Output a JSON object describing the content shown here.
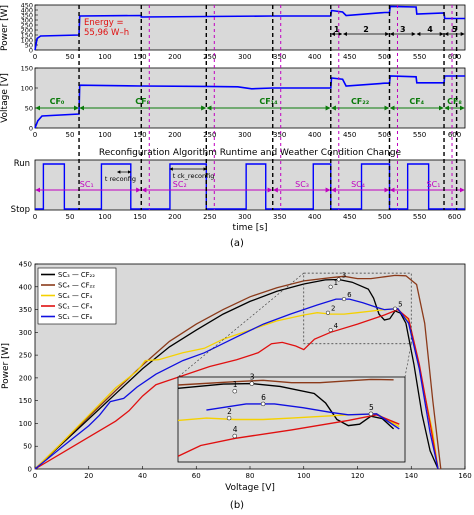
{
  "top_figure": {
    "panel_label": "(a)",
    "xlabel": "time [s]",
    "xticks": [
      "0",
      "50",
      "100",
      "150",
      "200",
      "250",
      "300",
      "350",
      "400",
      "450",
      "500",
      "550",
      "600"
    ],
    "event_times": [
      63,
      152,
      245,
      340,
      423,
      507,
      585,
      603
    ],
    "reconfig_times": [
      152,
      245,
      340,
      423,
      507,
      585
    ],
    "power": {
      "ylabel": "Power [W]",
      "yticks": [
        "0",
        "50",
        "100",
        "150",
        "200",
        "250",
        "300",
        "350",
        "400",
        "450"
      ],
      "annotation": "Energy =\n55,96 W–h",
      "segment_labels": [
        "1",
        "2",
        "3",
        "4",
        "5"
      ],
      "series": [
        [
          0,
          0
        ],
        [
          3,
          115
        ],
        [
          8,
          140
        ],
        [
          63,
          150
        ],
        [
          64,
          340
        ],
        [
          152,
          345
        ],
        [
          152,
          330
        ],
        [
          245,
          335
        ],
        [
          340,
          340
        ],
        [
          423,
          340
        ],
        [
          424,
          395
        ],
        [
          440,
          380
        ],
        [
          445,
          345
        ],
        [
          500,
          375
        ],
        [
          507,
          375
        ],
        [
          508,
          435
        ],
        [
          545,
          430
        ],
        [
          546,
          360
        ],
        [
          585,
          370
        ],
        [
          586,
          315
        ],
        [
          615,
          315
        ]
      ]
    },
    "voltage": {
      "ylabel": "Voltage [V]",
      "yticks": [
        "0",
        "50",
        "100",
        "150"
      ],
      "cf_labels": [
        "CF₀",
        "CF₈",
        "CF₁₄",
        "CF₂₂",
        "CF₄",
        "CF₈"
      ],
      "series": [
        [
          0,
          0
        ],
        [
          4,
          18
        ],
        [
          10,
          30
        ],
        [
          63,
          35
        ],
        [
          64,
          107
        ],
        [
          152,
          105
        ],
        [
          245,
          104
        ],
        [
          290,
          103
        ],
        [
          310,
          98
        ],
        [
          340,
          100
        ],
        [
          423,
          100
        ],
        [
          424,
          125
        ],
        [
          440,
          122
        ],
        [
          445,
          105
        ],
        [
          500,
          112
        ],
        [
          507,
          112
        ],
        [
          508,
          130
        ],
        [
          545,
          128
        ],
        [
          546,
          113
        ],
        [
          585,
          113
        ],
        [
          586,
          130
        ],
        [
          615,
          130
        ]
      ]
    },
    "runtime": {
      "title": "Reconfiguration Algorithm Runtime and Weather Condition Change",
      "ylabels": [
        "Run",
        "Stop"
      ],
      "sc_labels": [
        "SC₁",
        "SC₂",
        "SC₃",
        "SC₄",
        "SC₁"
      ],
      "annot_short": "t reconfig",
      "annot_long": "t ck_reconfig",
      "pulses": [
        [
          12,
          42
        ],
        [
          95,
          137
        ],
        [
          193,
          245
        ],
        [
          302,
          330
        ],
        [
          398,
          423
        ],
        [
          467,
          507
        ],
        [
          533,
          563
        ]
      ]
    }
  },
  "bottom_figure": {
    "panel_label": "(b)",
    "chart_data": {
      "type": "line",
      "xlabel": "Voltage [V]",
      "ylabel": "Power [W]",
      "xlim": [
        0,
        160
      ],
      "ylim": [
        0,
        450
      ],
      "xticks": [
        "0",
        "20",
        "40",
        "60",
        "80",
        "100",
        "120",
        "140",
        "160"
      ],
      "yticks": [
        "0",
        "50",
        "100",
        "150",
        "200",
        "250",
        "300",
        "350",
        "400",
        "450"
      ],
      "legend_labels": [
        "SC₃ — CF₂₂",
        "SC₄ — CF₂₂",
        "SC₄ — CF₄",
        "SC₁ — CF₄",
        "SC₁ — CF₈"
      ],
      "point_labels": [
        "3",
        "1",
        "6",
        "2",
        "5",
        "4"
      ],
      "series": [
        {
          "color": "#000000",
          "points": [
            [
              0,
              0
            ],
            [
              10,
              55
            ],
            [
              20,
              110
            ],
            [
              30,
              165
            ],
            [
              40,
              220
            ],
            [
              50,
              268
            ],
            [
              60,
              305
            ],
            [
              70,
              340
            ],
            [
              80,
              368
            ],
            [
              90,
              390
            ],
            [
              100,
              406
            ],
            [
              108,
              415
            ],
            [
              113,
              416
            ],
            [
              118,
              410
            ],
            [
              124,
              395
            ],
            [
              126,
              375
            ],
            [
              128,
              340
            ],
            [
              130,
              327
            ],
            [
              132,
              330
            ],
            [
              134,
              347
            ],
            [
              136,
              342
            ],
            [
              138,
              320
            ],
            [
              141,
              230
            ],
            [
              144,
              120
            ],
            [
              147,
              40
            ],
            [
              150,
              0
            ]
          ]
        },
        {
          "color": "#8b3a1a",
          "points": [
            [
              0,
              0
            ],
            [
              10,
              57
            ],
            [
              20,
              115
            ],
            [
              30,
              172
            ],
            [
              40,
              228
            ],
            [
              50,
              280
            ],
            [
              60,
              318
            ],
            [
              70,
              350
            ],
            [
              80,
              378
            ],
            [
              90,
              398
            ],
            [
              100,
              413
            ],
            [
              110,
              420
            ],
            [
              115,
              423
            ],
            [
              120,
              418
            ],
            [
              125,
              418
            ],
            [
              130,
              422
            ],
            [
              134,
              425
            ],
            [
              138,
              424
            ],
            [
              142,
              405
            ],
            [
              145,
              320
            ],
            [
              148,
              150
            ],
            [
              151,
              0
            ]
          ]
        },
        {
          "color": "#f5d100",
          "points": [
            [
              0,
              0
            ],
            [
              10,
              58
            ],
            [
              20,
              118
            ],
            [
              30,
              178
            ],
            [
              38,
              215
            ],
            [
              41,
              238
            ],
            [
              46,
              240
            ],
            [
              55,
              255
            ],
            [
              63,
              265
            ],
            [
              70,
              285
            ],
            [
              80,
              305
            ],
            [
              90,
              325
            ],
            [
              100,
              338
            ],
            [
              105,
              343
            ],
            [
              110,
              340
            ],
            [
              115,
              340
            ],
            [
              120,
              343
            ],
            [
              130,
              350
            ],
            [
              135,
              352
            ],
            [
              139,
              325
            ],
            [
              143,
              220
            ],
            [
              148,
              80
            ],
            [
              150,
              0
            ]
          ]
        },
        {
          "color": "#e01010",
          "points": [
            [
              0,
              0
            ],
            [
              10,
              35
            ],
            [
              20,
              70
            ],
            [
              30,
              105
            ],
            [
              35,
              128
            ],
            [
              40,
              160
            ],
            [
              45,
              185
            ],
            [
              55,
              205
            ],
            [
              65,
              225
            ],
            [
              75,
              240
            ],
            [
              83,
              255
            ],
            [
              88,
              275
            ],
            [
              92,
              278
            ],
            [
              97,
              270
            ],
            [
              100,
              262
            ],
            [
              104,
              285
            ],
            [
              110,
              300
            ],
            [
              120,
              318
            ],
            [
              130,
              338
            ],
            [
              135,
              350
            ],
            [
              139,
              330
            ],
            [
              143,
              230
            ],
            [
              147,
              100
            ],
            [
              150,
              0
            ]
          ]
        },
        {
          "color": "#1010e0",
          "points": [
            [
              0,
              0
            ],
            [
              10,
              48
            ],
            [
              20,
              95
            ],
            [
              24,
              118
            ],
            [
              28,
              148
            ],
            [
              33,
              155
            ],
            [
              38,
              180
            ],
            [
              45,
              208
            ],
            [
              55,
              238
            ],
            [
              63,
              255
            ],
            [
              75,
              290
            ],
            [
              85,
              318
            ],
            [
              95,
              340
            ],
            [
              105,
              360
            ],
            [
              112,
              373
            ],
            [
              117,
              373
            ],
            [
              122,
              365
            ],
            [
              127,
              355
            ],
            [
              130,
              350
            ],
            [
              135,
              352
            ],
            [
              139,
              320
            ],
            [
              143,
              220
            ],
            [
              147,
              80
            ],
            [
              150,
              0
            ]
          ]
        }
      ]
    }
  }
}
